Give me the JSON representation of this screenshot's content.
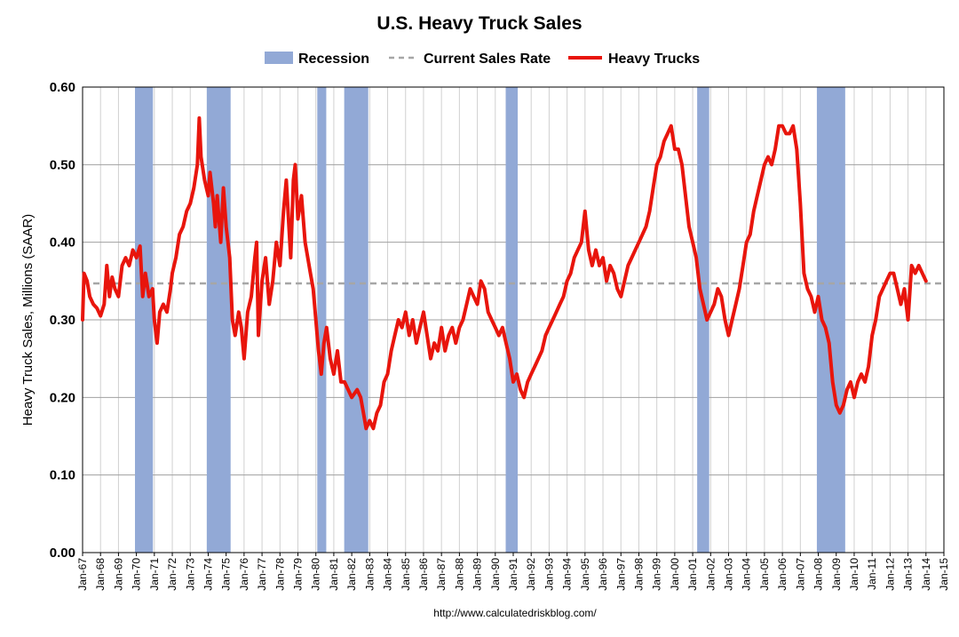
{
  "chart_data": {
    "type": "line",
    "title": "U.S. Heavy Truck Sales",
    "ylabel": "Heavy Truck Sales, Millions (SAAR)",
    "xlabel": "",
    "source": "http://www.calculatedriskblog.com/",
    "ylim": [
      0,
      0.6
    ],
    "xlim": [
      1967,
      2015
    ],
    "y_ticks": [
      "0.00",
      "0.10",
      "0.20",
      "0.30",
      "0.40",
      "0.50",
      "0.60"
    ],
    "x_ticks": [
      "Jan-67",
      "Jan-68",
      "Jan-69",
      "Jan-70",
      "Jan-71",
      "Jan-72",
      "Jan-73",
      "Jan-74",
      "Jan-75",
      "Jan-76",
      "Jan-77",
      "Jan-78",
      "Jan-79",
      "Jan-80",
      "Jan-81",
      "Jan-82",
      "Jan-83",
      "Jan-84",
      "Jan-85",
      "Jan-86",
      "Jan-87",
      "Jan-88",
      "Jan-89",
      "Jan-90",
      "Jan-91",
      "Jan-92",
      "Jan-93",
      "Jan-94",
      "Jan-95",
      "Jan-96",
      "Jan-97",
      "Jan-98",
      "Jan-99",
      "Jan-00",
      "Jan-01",
      "Jan-02",
      "Jan-03",
      "Jan-04",
      "Jan-05",
      "Jan-06",
      "Jan-07",
      "Jan-08",
      "Jan-09",
      "Jan-10",
      "Jan-11",
      "Jan-12",
      "Jan-13",
      "Jan-14",
      "Jan-15"
    ],
    "grid": true,
    "legend": {
      "position": "top",
      "items": [
        {
          "label": "Recession",
          "kind": "band",
          "color": "#92a9d6"
        },
        {
          "label": "Current Sales Rate",
          "kind": "dashed",
          "color": "#a6a6a6"
        },
        {
          "label": "Heavy Trucks",
          "kind": "line",
          "color": "#e8150c"
        }
      ]
    },
    "recessions": [
      [
        1969.92,
        1970.92
      ],
      [
        1973.92,
        1975.25
      ],
      [
        1980.08,
        1980.58
      ],
      [
        1981.58,
        1982.92
      ],
      [
        1990.58,
        1991.25
      ],
      [
        2001.25,
        2001.92
      ],
      [
        2007.92,
        2009.5
      ]
    ],
    "current_sales_rate": 0.347,
    "series": [
      {
        "name": "Heavy Trucks",
        "color": "#e8150c",
        "points": [
          [
            1967.0,
            0.3
          ],
          [
            1967.08,
            0.36
          ],
          [
            1967.25,
            0.35
          ],
          [
            1967.4,
            0.33
          ],
          [
            1967.6,
            0.32
          ],
          [
            1967.8,
            0.315
          ],
          [
            1968.0,
            0.305
          ],
          [
            1968.2,
            0.32
          ],
          [
            1968.35,
            0.37
          ],
          [
            1968.5,
            0.33
          ],
          [
            1968.65,
            0.355
          ],
          [
            1968.8,
            0.34
          ],
          [
            1969.0,
            0.33
          ],
          [
            1969.2,
            0.37
          ],
          [
            1969.4,
            0.38
          ],
          [
            1969.6,
            0.37
          ],
          [
            1969.8,
            0.39
          ],
          [
            1970.0,
            0.38
          ],
          [
            1970.2,
            0.395
          ],
          [
            1970.35,
            0.33
          ],
          [
            1970.5,
            0.36
          ],
          [
            1970.7,
            0.33
          ],
          [
            1970.9,
            0.34
          ],
          [
            1971.0,
            0.3
          ],
          [
            1971.15,
            0.27
          ],
          [
            1971.3,
            0.31
          ],
          [
            1971.5,
            0.32
          ],
          [
            1971.7,
            0.31
          ],
          [
            1971.9,
            0.34
          ],
          [
            1972.0,
            0.36
          ],
          [
            1972.2,
            0.38
          ],
          [
            1972.4,
            0.41
          ],
          [
            1972.6,
            0.42
          ],
          [
            1972.8,
            0.44
          ],
          [
            1973.0,
            0.45
          ],
          [
            1973.2,
            0.47
          ],
          [
            1973.4,
            0.5
          ],
          [
            1973.5,
            0.56
          ],
          [
            1973.6,
            0.51
          ],
          [
            1973.8,
            0.48
          ],
          [
            1974.0,
            0.46
          ],
          [
            1974.1,
            0.49
          ],
          [
            1974.3,
            0.45
          ],
          [
            1974.4,
            0.42
          ],
          [
            1974.5,
            0.46
          ],
          [
            1974.7,
            0.4
          ],
          [
            1974.85,
            0.47
          ],
          [
            1975.0,
            0.42
          ],
          [
            1975.2,
            0.38
          ],
          [
            1975.35,
            0.3
          ],
          [
            1975.5,
            0.28
          ],
          [
            1975.7,
            0.31
          ],
          [
            1975.85,
            0.29
          ],
          [
            1976.0,
            0.25
          ],
          [
            1976.2,
            0.31
          ],
          [
            1976.4,
            0.33
          ],
          [
            1976.6,
            0.38
          ],
          [
            1976.7,
            0.4
          ],
          [
            1976.8,
            0.28
          ],
          [
            1977.0,
            0.35
          ],
          [
            1977.2,
            0.38
          ],
          [
            1977.4,
            0.32
          ],
          [
            1977.6,
            0.35
          ],
          [
            1977.8,
            0.4
          ],
          [
            1978.0,
            0.37
          ],
          [
            1978.2,
            0.44
          ],
          [
            1978.35,
            0.48
          ],
          [
            1978.5,
            0.42
          ],
          [
            1978.6,
            0.38
          ],
          [
            1978.75,
            0.48
          ],
          [
            1978.85,
            0.5
          ],
          [
            1979.0,
            0.43
          ],
          [
            1979.2,
            0.46
          ],
          [
            1979.4,
            0.4
          ],
          [
            1979.55,
            0.38
          ],
          [
            1979.7,
            0.36
          ],
          [
            1979.85,
            0.34
          ],
          [
            1980.0,
            0.3
          ],
          [
            1980.15,
            0.26
          ],
          [
            1980.3,
            0.23
          ],
          [
            1980.45,
            0.27
          ],
          [
            1980.6,
            0.29
          ],
          [
            1980.8,
            0.25
          ],
          [
            1981.0,
            0.23
          ],
          [
            1981.2,
            0.26
          ],
          [
            1981.4,
            0.22
          ],
          [
            1981.6,
            0.22
          ],
          [
            1981.8,
            0.21
          ],
          [
            1982.0,
            0.2
          ],
          [
            1982.3,
            0.21
          ],
          [
            1982.5,
            0.2
          ],
          [
            1982.65,
            0.18
          ],
          [
            1982.8,
            0.16
          ],
          [
            1983.0,
            0.17
          ],
          [
            1983.2,
            0.16
          ],
          [
            1983.4,
            0.18
          ],
          [
            1983.6,
            0.19
          ],
          [
            1983.8,
            0.22
          ],
          [
            1984.0,
            0.23
          ],
          [
            1984.2,
            0.26
          ],
          [
            1984.4,
            0.28
          ],
          [
            1984.6,
            0.3
          ],
          [
            1984.8,
            0.29
          ],
          [
            1985.0,
            0.31
          ],
          [
            1985.2,
            0.28
          ],
          [
            1985.4,
            0.3
          ],
          [
            1985.6,
            0.27
          ],
          [
            1985.8,
            0.29
          ],
          [
            1986.0,
            0.31
          ],
          [
            1986.2,
            0.28
          ],
          [
            1986.4,
            0.25
          ],
          [
            1986.6,
            0.27
          ],
          [
            1986.8,
            0.26
          ],
          [
            1987.0,
            0.29
          ],
          [
            1987.2,
            0.26
          ],
          [
            1987.4,
            0.28
          ],
          [
            1987.6,
            0.29
          ],
          [
            1987.8,
            0.27
          ],
          [
            1988.0,
            0.29
          ],
          [
            1988.2,
            0.3
          ],
          [
            1988.4,
            0.32
          ],
          [
            1988.6,
            0.34
          ],
          [
            1988.8,
            0.33
          ],
          [
            1989.0,
            0.32
          ],
          [
            1989.2,
            0.35
          ],
          [
            1989.4,
            0.34
          ],
          [
            1989.6,
            0.31
          ],
          [
            1989.8,
            0.3
          ],
          [
            1990.0,
            0.29
          ],
          [
            1990.2,
            0.28
          ],
          [
            1990.4,
            0.29
          ],
          [
            1990.6,
            0.27
          ],
          [
            1990.8,
            0.25
          ],
          [
            1991.0,
            0.22
          ],
          [
            1991.2,
            0.23
          ],
          [
            1991.4,
            0.21
          ],
          [
            1991.6,
            0.2
          ],
          [
            1991.8,
            0.22
          ],
          [
            1992.0,
            0.23
          ],
          [
            1992.2,
            0.24
          ],
          [
            1992.4,
            0.25
          ],
          [
            1992.6,
            0.26
          ],
          [
            1992.8,
            0.28
          ],
          [
            1993.0,
            0.29
          ],
          [
            1993.2,
            0.3
          ],
          [
            1993.4,
            0.31
          ],
          [
            1993.6,
            0.32
          ],
          [
            1993.8,
            0.33
          ],
          [
            1994.0,
            0.35
          ],
          [
            1994.2,
            0.36
          ],
          [
            1994.4,
            0.38
          ],
          [
            1994.6,
            0.39
          ],
          [
            1994.8,
            0.4
          ],
          [
            1995.0,
            0.44
          ],
          [
            1995.2,
            0.39
          ],
          [
            1995.4,
            0.37
          ],
          [
            1995.6,
            0.39
          ],
          [
            1995.8,
            0.37
          ],
          [
            1996.0,
            0.38
          ],
          [
            1996.2,
            0.35
          ],
          [
            1996.4,
            0.37
          ],
          [
            1996.6,
            0.36
          ],
          [
            1996.8,
            0.34
          ],
          [
            1997.0,
            0.33
          ],
          [
            1997.2,
            0.35
          ],
          [
            1997.4,
            0.37
          ],
          [
            1997.6,
            0.38
          ],
          [
            1997.8,
            0.39
          ],
          [
            1998.0,
            0.4
          ],
          [
            1998.2,
            0.41
          ],
          [
            1998.4,
            0.42
          ],
          [
            1998.6,
            0.44
          ],
          [
            1998.8,
            0.47
          ],
          [
            1999.0,
            0.5
          ],
          [
            1999.2,
            0.51
          ],
          [
            1999.4,
            0.53
          ],
          [
            1999.6,
            0.54
          ],
          [
            1999.8,
            0.55
          ],
          [
            2000.0,
            0.52
          ],
          [
            2000.2,
            0.52
          ],
          [
            2000.4,
            0.5
          ],
          [
            2000.6,
            0.46
          ],
          [
            2000.8,
            0.42
          ],
          [
            2001.0,
            0.4
          ],
          [
            2001.2,
            0.38
          ],
          [
            2001.4,
            0.34
          ],
          [
            2001.6,
            0.32
          ],
          [
            2001.8,
            0.3
          ],
          [
            2002.0,
            0.31
          ],
          [
            2002.2,
            0.32
          ],
          [
            2002.4,
            0.34
          ],
          [
            2002.6,
            0.33
          ],
          [
            2002.8,
            0.3
          ],
          [
            2003.0,
            0.28
          ],
          [
            2003.2,
            0.3
          ],
          [
            2003.4,
            0.32
          ],
          [
            2003.6,
            0.34
          ],
          [
            2003.8,
            0.37
          ],
          [
            2004.0,
            0.4
          ],
          [
            2004.2,
            0.41
          ],
          [
            2004.4,
            0.44
          ],
          [
            2004.6,
            0.46
          ],
          [
            2004.8,
            0.48
          ],
          [
            2005.0,
            0.5
          ],
          [
            2005.2,
            0.51
          ],
          [
            2005.4,
            0.5
          ],
          [
            2005.6,
            0.52
          ],
          [
            2005.8,
            0.55
          ],
          [
            2006.0,
            0.55
          ],
          [
            2006.2,
            0.54
          ],
          [
            2006.4,
            0.54
          ],
          [
            2006.6,
            0.55
          ],
          [
            2006.8,
            0.52
          ],
          [
            2007.0,
            0.45
          ],
          [
            2007.2,
            0.36
          ],
          [
            2007.4,
            0.34
          ],
          [
            2007.6,
            0.33
          ],
          [
            2007.8,
            0.31
          ],
          [
            2008.0,
            0.33
          ],
          [
            2008.2,
            0.3
          ],
          [
            2008.4,
            0.29
          ],
          [
            2008.6,
            0.27
          ],
          [
            2008.8,
            0.22
          ],
          [
            2009.0,
            0.19
          ],
          [
            2009.2,
            0.18
          ],
          [
            2009.4,
            0.19
          ],
          [
            2009.6,
            0.21
          ],
          [
            2009.8,
            0.22
          ],
          [
            2010.0,
            0.2
          ],
          [
            2010.2,
            0.22
          ],
          [
            2010.4,
            0.23
          ],
          [
            2010.6,
            0.22
          ],
          [
            2010.8,
            0.24
          ],
          [
            2011.0,
            0.28
          ],
          [
            2011.2,
            0.3
          ],
          [
            2011.4,
            0.33
          ],
          [
            2011.6,
            0.34
          ],
          [
            2011.8,
            0.35
          ],
          [
            2012.0,
            0.36
          ],
          [
            2012.2,
            0.36
          ],
          [
            2012.4,
            0.34
          ],
          [
            2012.6,
            0.32
          ],
          [
            2012.8,
            0.34
          ],
          [
            2013.0,
            0.3
          ],
          [
            2013.2,
            0.37
          ],
          [
            2013.4,
            0.36
          ],
          [
            2013.6,
            0.37
          ],
          [
            2013.8,
            0.36
          ],
          [
            2014.0,
            0.35
          ]
        ]
      }
    ]
  }
}
